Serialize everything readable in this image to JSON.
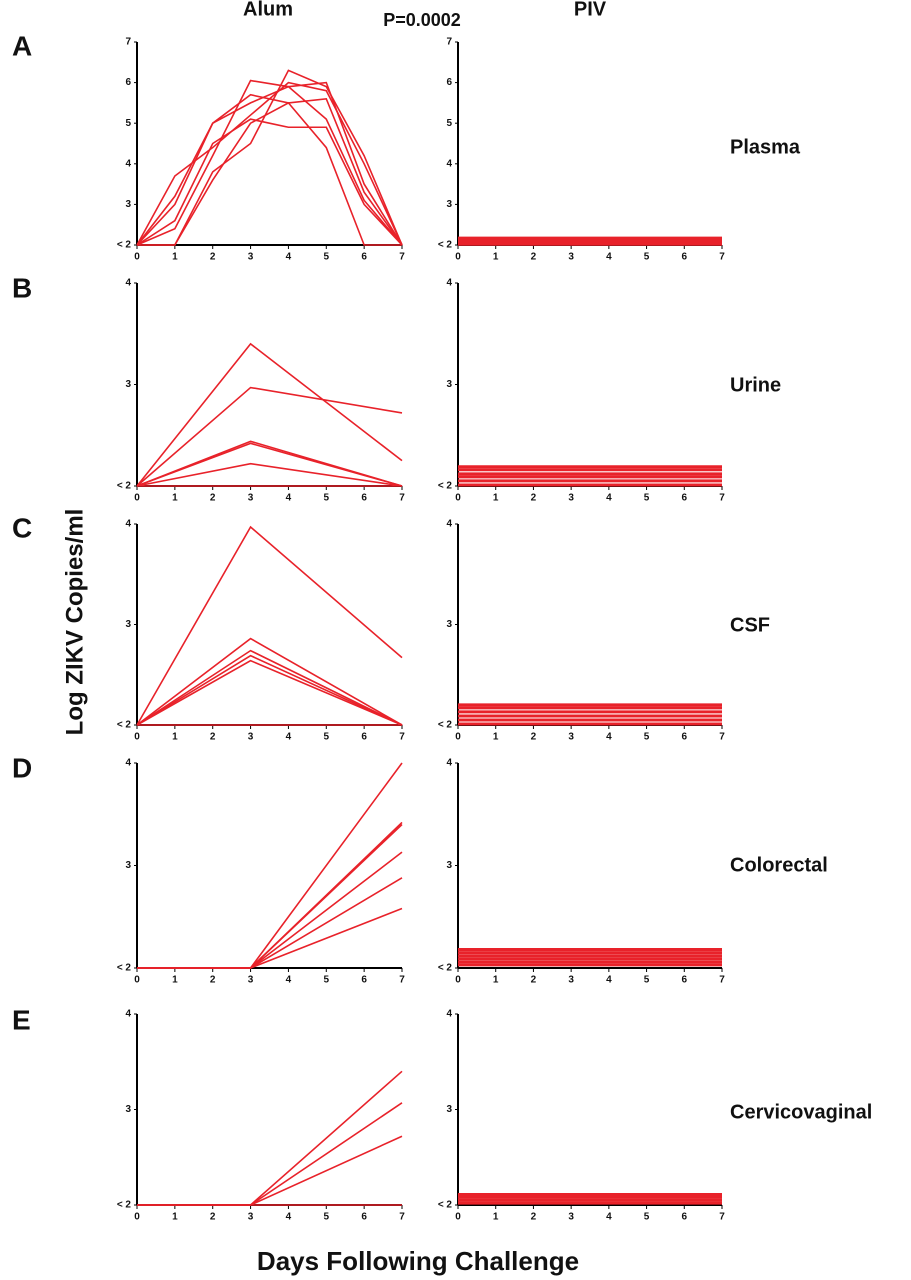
{
  "figure": {
    "column_titles": [
      "Alum",
      "PIV"
    ],
    "p_value": "P=0.0002",
    "panel_letters": [
      "A",
      "B",
      "C",
      "D",
      "E"
    ],
    "specimens": [
      "Plasma",
      "Urine",
      "CSF",
      "Colorectal",
      "Cervicovaginal"
    ],
    "y_label": "Log ZIKV Copies/ml",
    "x_label": "Days Following Challenge"
  },
  "chart_data": [
    {
      "type": "line",
      "color": "#e8222a",
      "x": [
        0,
        1,
        2,
        3,
        4,
        5,
        6,
        7
      ],
      "xlim": [
        0,
        7
      ],
      "xticks": [
        0,
        1,
        2,
        3,
        4,
        5,
        6,
        7
      ],
      "ylim": [
        2,
        7
      ],
      "yticks": [
        {
          "value": 2,
          "label": "< 2"
        },
        3,
        4,
        5,
        6,
        7
      ],
      "series": [
        {
          "values": [
            2,
            3.7,
            4.4,
            5.2,
            6.0,
            5.8,
            4.0,
            2
          ]
        },
        {
          "values": [
            2,
            2.4,
            4.2,
            6.05,
            5.9,
            5.1,
            3.1,
            2
          ]
        },
        {
          "values": [
            2,
            2.0,
            3.8,
            4.5,
            6.3,
            5.9,
            4.2,
            2
          ]
        },
        {
          "values": [
            2,
            3.0,
            5.0,
            5.5,
            5.9,
            6.0,
            3.5,
            2
          ]
        },
        {
          "values": [
            2,
            2.6,
            4.5,
            5.1,
            4.9,
            4.9,
            3.0,
            2
          ]
        },
        {
          "values": [
            2,
            2.0,
            3.6,
            5.0,
            5.5,
            4.4,
            2.0,
            2
          ]
        },
        {
          "values": [
            2,
            3.2,
            5.0,
            5.7,
            5.5,
            5.6,
            3.3,
            2
          ]
        }
      ]
    },
    {
      "type": "line",
      "color": "#e8222a",
      "x": [
        0,
        7
      ],
      "xlim": [
        0,
        7
      ],
      "xticks": [
        0,
        1,
        2,
        3,
        4,
        5,
        6,
        7
      ],
      "ylim": [
        2,
        7
      ],
      "yticks": [
        {
          "value": 2,
          "label": "< 2"
        },
        3,
        4,
        5,
        6,
        7
      ],
      "series": [
        {
          "values": [
            2.02,
            2.02
          ]
        },
        {
          "values": [
            2.05,
            2.05
          ]
        },
        {
          "values": [
            2.08,
            2.08
          ]
        },
        {
          "values": [
            2.11,
            2.11
          ]
        },
        {
          "values": [
            2.14,
            2.14
          ]
        },
        {
          "values": [
            2.17,
            2.17
          ]
        }
      ]
    },
    {
      "type": "line",
      "color": "#e8222a",
      "x": [
        0,
        3,
        7
      ],
      "xlim": [
        0,
        7
      ],
      "xticks": [
        0,
        1,
        2,
        3,
        4,
        5,
        6,
        7
      ],
      "ylim": [
        2,
        4
      ],
      "yticks": [
        {
          "value": 2,
          "label": "< 2"
        },
        3,
        4
      ],
      "series": [
        {
          "values": [
            2,
            3.4,
            2.25
          ]
        },
        {
          "values": [
            2,
            2.97,
            2.72
          ]
        },
        {
          "values": [
            2,
            2.44,
            2.0
          ]
        },
        {
          "values": [
            2,
            2.42,
            2.0
          ]
        },
        {
          "values": [
            2,
            2.22,
            2.0
          ]
        },
        {
          "values": [
            2,
            2.0,
            2.0
          ]
        }
      ]
    },
    {
      "type": "line",
      "color": "#e8222a",
      "x": [
        0,
        7
      ],
      "xlim": [
        0,
        7
      ],
      "xticks": [
        0,
        1,
        2,
        3,
        4,
        5,
        6,
        7
      ],
      "ylim": [
        2,
        4
      ],
      "yticks": [
        {
          "value": 2,
          "label": "< 2"
        },
        3,
        4
      ],
      "series": [
        {
          "values": [
            2.01,
            2.01
          ]
        },
        {
          "values": [
            2.05,
            2.05
          ]
        },
        {
          "values": [
            2.09,
            2.09
          ]
        },
        {
          "values": [
            2.12,
            2.12
          ]
        },
        {
          "values": [
            2.16,
            2.16
          ]
        },
        {
          "values": [
            2.19,
            2.19
          ]
        }
      ]
    },
    {
      "type": "line",
      "color": "#e8222a",
      "x": [
        0,
        3,
        7
      ],
      "xlim": [
        0,
        7
      ],
      "xticks": [
        0,
        1,
        2,
        3,
        4,
        5,
        6,
        7
      ],
      "ylim": [
        2,
        4
      ],
      "yticks": [
        {
          "value": 2,
          "label": "< 2"
        },
        3,
        4
      ],
      "series": [
        {
          "values": [
            2,
            3.97,
            2.67
          ]
        },
        {
          "values": [
            2,
            2.86,
            2.0
          ]
        },
        {
          "values": [
            2,
            2.74,
            2.0
          ]
        },
        {
          "values": [
            2,
            2.69,
            2.0
          ]
        },
        {
          "values": [
            2,
            2.64,
            2.0
          ]
        },
        {
          "values": [
            2,
            2.0,
            2.0
          ]
        }
      ]
    },
    {
      "type": "line",
      "color": "#e8222a",
      "x": [
        0,
        7
      ],
      "xlim": [
        0,
        7
      ],
      "xticks": [
        0,
        1,
        2,
        3,
        4,
        5,
        6,
        7
      ],
      "ylim": [
        2,
        4
      ],
      "yticks": [
        {
          "value": 2,
          "label": "< 2"
        },
        3,
        4
      ],
      "series": [
        {
          "values": [
            2.01,
            2.01
          ]
        },
        {
          "values": [
            2.05,
            2.05
          ]
        },
        {
          "values": [
            2.09,
            2.09
          ]
        },
        {
          "values": [
            2.13,
            2.13
          ]
        },
        {
          "values": [
            2.17,
            2.17
          ]
        },
        {
          "values": [
            2.2,
            2.2
          ]
        }
      ]
    },
    {
      "type": "line",
      "color": "#e8222a",
      "x": [
        0,
        3,
        7
      ],
      "xlim": [
        0,
        7
      ],
      "xticks": [
        0,
        1,
        2,
        3,
        4,
        5,
        6,
        7
      ],
      "ylim": [
        2,
        4
      ],
      "yticks": [
        {
          "value": 2,
          "label": "< 2"
        },
        3,
        4
      ],
      "series": [
        {
          "values": [
            2,
            2,
            4.0
          ]
        },
        {
          "values": [
            2,
            2,
            3.42
          ]
        },
        {
          "values": [
            2,
            2,
            3.4
          ]
        },
        {
          "values": [
            2,
            2,
            3.13
          ]
        },
        {
          "values": [
            2,
            2,
            2.88
          ]
        },
        {
          "values": [
            2,
            2,
            2.58
          ]
        }
      ]
    },
    {
      "type": "line",
      "color": "#e8222a",
      "x": [
        0,
        7
      ],
      "xlim": [
        0,
        7
      ],
      "xticks": [
        0,
        1,
        2,
        3,
        4,
        5,
        6,
        7
      ],
      "ylim": [
        2,
        4
      ],
      "yticks": [
        {
          "value": 2,
          "label": "< 2"
        },
        3,
        4
      ],
      "series": [
        {
          "values": [
            2.03,
            2.03
          ]
        },
        {
          "values": [
            2.06,
            2.06
          ]
        },
        {
          "values": [
            2.09,
            2.09
          ]
        },
        {
          "values": [
            2.12,
            2.12
          ]
        },
        {
          "values": [
            2.15,
            2.15
          ]
        },
        {
          "values": [
            2.18,
            2.18
          ]
        }
      ]
    },
    {
      "type": "line",
      "color": "#e8222a",
      "x": [
        0,
        3,
        7
      ],
      "xlim": [
        0,
        7
      ],
      "xticks": [
        0,
        1,
        2,
        3,
        4,
        5,
        6,
        7
      ],
      "ylim": [
        2,
        4
      ],
      "yticks": [
        {
          "value": 2,
          "label": "< 2"
        },
        3,
        4
      ],
      "series": [
        {
          "values": [
            2,
            2,
            3.4
          ]
        },
        {
          "values": [
            2,
            2,
            3.07
          ]
        },
        {
          "values": [
            2,
            2,
            2.72
          ]
        },
        {
          "values": [
            2,
            2,
            2.0
          ]
        }
      ]
    },
    {
      "type": "line",
      "color": "#e8222a",
      "x": [
        0,
        7
      ],
      "xlim": [
        0,
        7
      ],
      "xticks": [
        0,
        1,
        2,
        3,
        4,
        5,
        6,
        7
      ],
      "ylim": [
        2,
        4
      ],
      "yticks": [
        {
          "value": 2,
          "label": "< 2"
        },
        3,
        4
      ],
      "series": [
        {
          "values": [
            2.02,
            2.02
          ]
        },
        {
          "values": [
            2.05,
            2.05
          ]
        },
        {
          "values": [
            2.08,
            2.08
          ]
        },
        {
          "values": [
            2.11,
            2.11
          ]
        }
      ]
    }
  ]
}
